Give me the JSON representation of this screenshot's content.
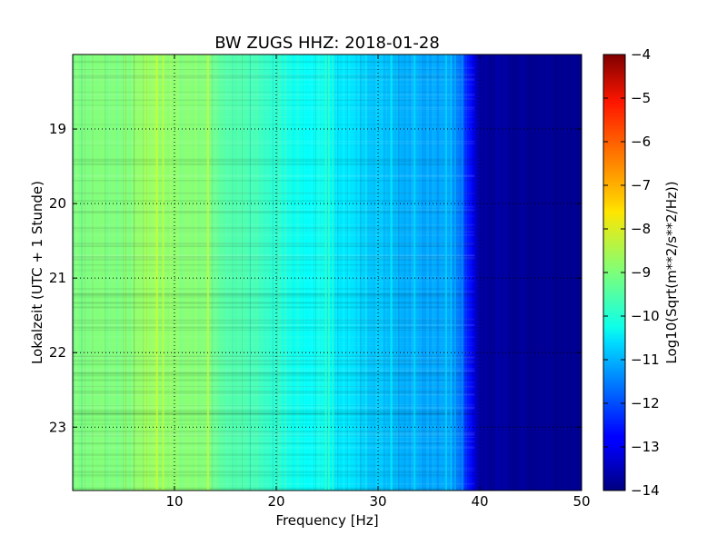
{
  "chart_data": {
    "type": "heatmap",
    "title": "BW ZUGS HHZ: 2018-01-28",
    "xlabel": "Frequency [Hz]",
    "ylabel": "Lokalzeit (UTC + 1 Stunde)",
    "xlim": [
      0,
      50
    ],
    "ylim": [
      18.0,
      23.85
    ],
    "y_axis_inverted": true,
    "x_ticks": [
      10,
      20,
      30,
      40,
      50
    ],
    "y_ticks": [
      19,
      20,
      21,
      22,
      23
    ],
    "grid": true,
    "colorbar": {
      "label": "Log10(Sqrt(m**2/s**2/Hz))",
      "range": [
        -14,
        -4
      ],
      "ticks": [
        -4,
        -5,
        -6,
        -7,
        -8,
        -9,
        -10,
        -11,
        -12,
        -13,
        -14
      ],
      "colormap": "jet"
    },
    "spectrum_profile": {
      "frequency_hz": [
        0,
        5,
        8,
        10,
        13,
        15,
        18,
        20,
        23,
        25,
        28,
        30,
        33,
        35,
        37,
        38,
        39,
        40,
        45,
        50
      ],
      "log10_asd": [
        -9.0,
        -9.0,
        -8.7,
        -8.9,
        -8.9,
        -9.4,
        -9.6,
        -9.8,
        -10.2,
        -10.2,
        -10.6,
        -10.8,
        -11.0,
        -11.1,
        -11.2,
        -11.6,
        -12.6,
        -13.7,
        -13.8,
        -13.8
      ]
    }
  }
}
